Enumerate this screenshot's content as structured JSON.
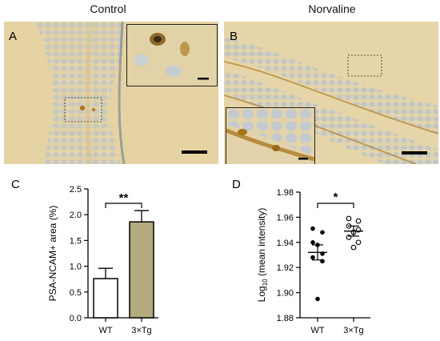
{
  "columns": {
    "left": "Control",
    "right": "Norvaline"
  },
  "panels": {
    "a": "A",
    "b": "B",
    "c": "C",
    "d": "D"
  },
  "colors": {
    "stain_background": "#e6d4a6",
    "nuclei": "#b9c3cc",
    "dab": "#a8741c",
    "bar_3xtg": "#b5aa7d"
  },
  "chart_data": [
    {
      "type": "bar",
      "panel": "C",
      "categories": [
        "WT",
        "3×Tg"
      ],
      "values": [
        0.76,
        1.86
      ],
      "errors": [
        0.2,
        0.22
      ],
      "ylabel": "PSA-NCAM+ area (%)",
      "ylim": [
        0,
        2.5
      ],
      "yticks": [
        "0.0",
        "0.5",
        "1.0",
        "1.5",
        "2.0",
        "2.5"
      ],
      "significance": "**"
    },
    {
      "type": "scatter",
      "panel": "D",
      "categories": [
        "WT",
        "3×Tg"
      ],
      "ylabel": "Log10 (mean intensity)",
      "ylim": [
        1.88,
        1.98
      ],
      "yticks": [
        "1.88",
        "1.90",
        "1.92",
        "1.94",
        "1.96",
        "1.98"
      ],
      "significance": "*",
      "series": [
        {
          "category": "WT",
          "points": [
            1.951,
            1.948,
            1.94,
            1.938,
            1.931,
            1.928,
            1.925,
            1.895
          ],
          "mean": 1.932,
          "sem": 0.006
        },
        {
          "category": "3×Tg",
          "points": [
            1.959,
            1.957,
            1.953,
            1.95,
            1.948,
            1.944,
            1.94,
            1.936
          ],
          "mean": 1.949,
          "sem": 0.004
        }
      ]
    }
  ]
}
